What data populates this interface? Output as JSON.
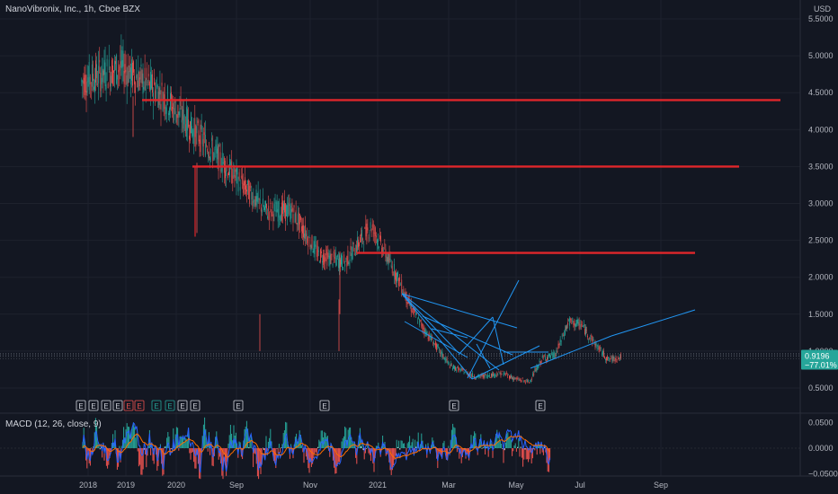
{
  "header": {
    "title": "NanoVibronix, Inc., 1h, Cboe BZX"
  },
  "macd": {
    "label": "MACD (12, 26, close, 9)"
  },
  "colors": {
    "background": "#131722",
    "up": "#26a69a",
    "down": "#ef5350",
    "hline": "#e0262b",
    "trend": "#2196f3",
    "macd_line": "#2962ff",
    "signal_line": "#ff6d00",
    "price_tag": "#26a69a"
  },
  "chart_data": {
    "type": "line",
    "title": "NanoVibronix, Inc., 1h, Cboe BZX",
    "currency": "USD",
    "x_ticks": [
      "2018",
      "2019",
      "2020",
      "Sep",
      "Nov",
      "2021",
      "Mar",
      "May",
      "Jul",
      "Sep"
    ],
    "y_ticks": [
      "5.5000",
      "5.0000",
      "4.5000",
      "4.0000",
      "3.5000",
      "3.0000",
      "2.5000",
      "2.0000",
      "1.5000",
      "1.0000",
      "0.5000"
    ],
    "ylim": [
      0.5,
      5.5
    ],
    "last_price": "0.9196",
    "last_change": "−77.01%",
    "horizontal_levels": [
      4.4,
      3.5,
      2.33
    ],
    "price_path": [
      {
        "x": "2018-01",
        "y": 4.65
      },
      {
        "x": "2018-04",
        "y": 4.85
      },
      {
        "x": "2018-07",
        "y": 4.5
      },
      {
        "x": "2018-10",
        "y": 3.9
      },
      {
        "x": "2019-01",
        "y": 3.3
      },
      {
        "x": "2019-03",
        "y": 2.9
      },
      {
        "x": "2019-05",
        "y": 2.9
      },
      {
        "x": "2019-07",
        "y": 2.3
      },
      {
        "x": "2019-09",
        "y": 2.2
      },
      {
        "x": "2019-11",
        "y": 2.7
      },
      {
        "x": "2020-01",
        "y": 2.0
      },
      {
        "x": "2020-02",
        "y": 1.6
      },
      {
        "x": "2020-03",
        "y": 1.3
      },
      {
        "x": "2020-05",
        "y": 0.8
      },
      {
        "x": "2020-07",
        "y": 0.65
      },
      {
        "x": "2020-09",
        "y": 0.7
      },
      {
        "x": "2020-10",
        "y": 0.62
      },
      {
        "x": "2020-11",
        "y": 0.58
      },
      {
        "x": "2020-12",
        "y": 0.9
      },
      {
        "x": "2021-01",
        "y": 0.95
      },
      {
        "x": "2021-02",
        "y": 1.4
      },
      {
        "x": "2021-03",
        "y": 1.35
      },
      {
        "x": "2021-04",
        "y": 1.1
      },
      {
        "x": "2021-05",
        "y": 0.88
      },
      {
        "x": "2021-06",
        "y": 0.92
      }
    ],
    "earnings_markers": [
      "E",
      "E",
      "E",
      "E",
      "E",
      "E",
      "E",
      "E",
      "E",
      "E",
      "E",
      "E"
    ],
    "macd_y_ticks": [
      "0.0500",
      "0.0000",
      "−0.0500"
    ],
    "macd_ylim": [
      -0.06,
      0.06
    ]
  }
}
